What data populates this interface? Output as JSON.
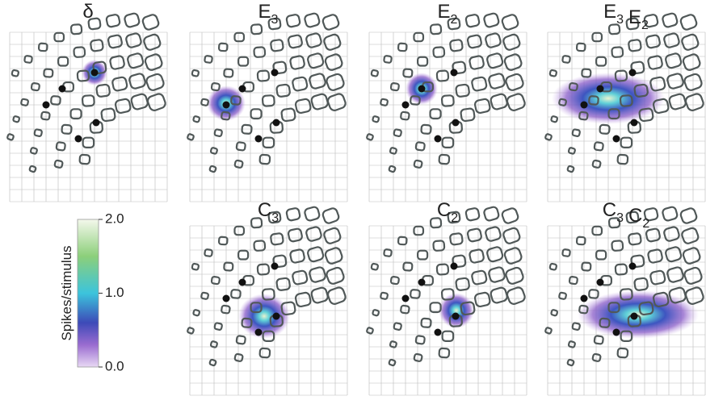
{
  "panels": [
    {
      "title": [
        {
          "base": "δ"
        }
      ]
    },
    {
      "title": [
        {
          "base": "E",
          "sub": "3"
        }
      ]
    },
    {
      "title": [
        {
          "base": "E",
          "sub": "2"
        }
      ]
    },
    {
      "title": [
        {
          "base": "E",
          "sub": "3"
        },
        {
          "base": "E",
          "sub": "2"
        }
      ]
    },
    {
      "title": [
        {
          "base": "C",
          "sub": "3"
        }
      ]
    },
    {
      "title": [
        {
          "base": "C",
          "sub": "2"
        }
      ]
    },
    {
      "title": [
        {
          "base": "C",
          "sub": "3"
        },
        {
          "base": "C",
          "sub": "2"
        }
      ]
    }
  ],
  "colorbar": {
    "label": "Spikes/stimulus",
    "range": [
      0,
      2
    ],
    "ticks": [
      {
        "value": 0,
        "label": "0.0"
      },
      {
        "value": 1,
        "label": "1.0"
      },
      {
        "value": 2,
        "label": "2.0"
      }
    ]
  }
}
